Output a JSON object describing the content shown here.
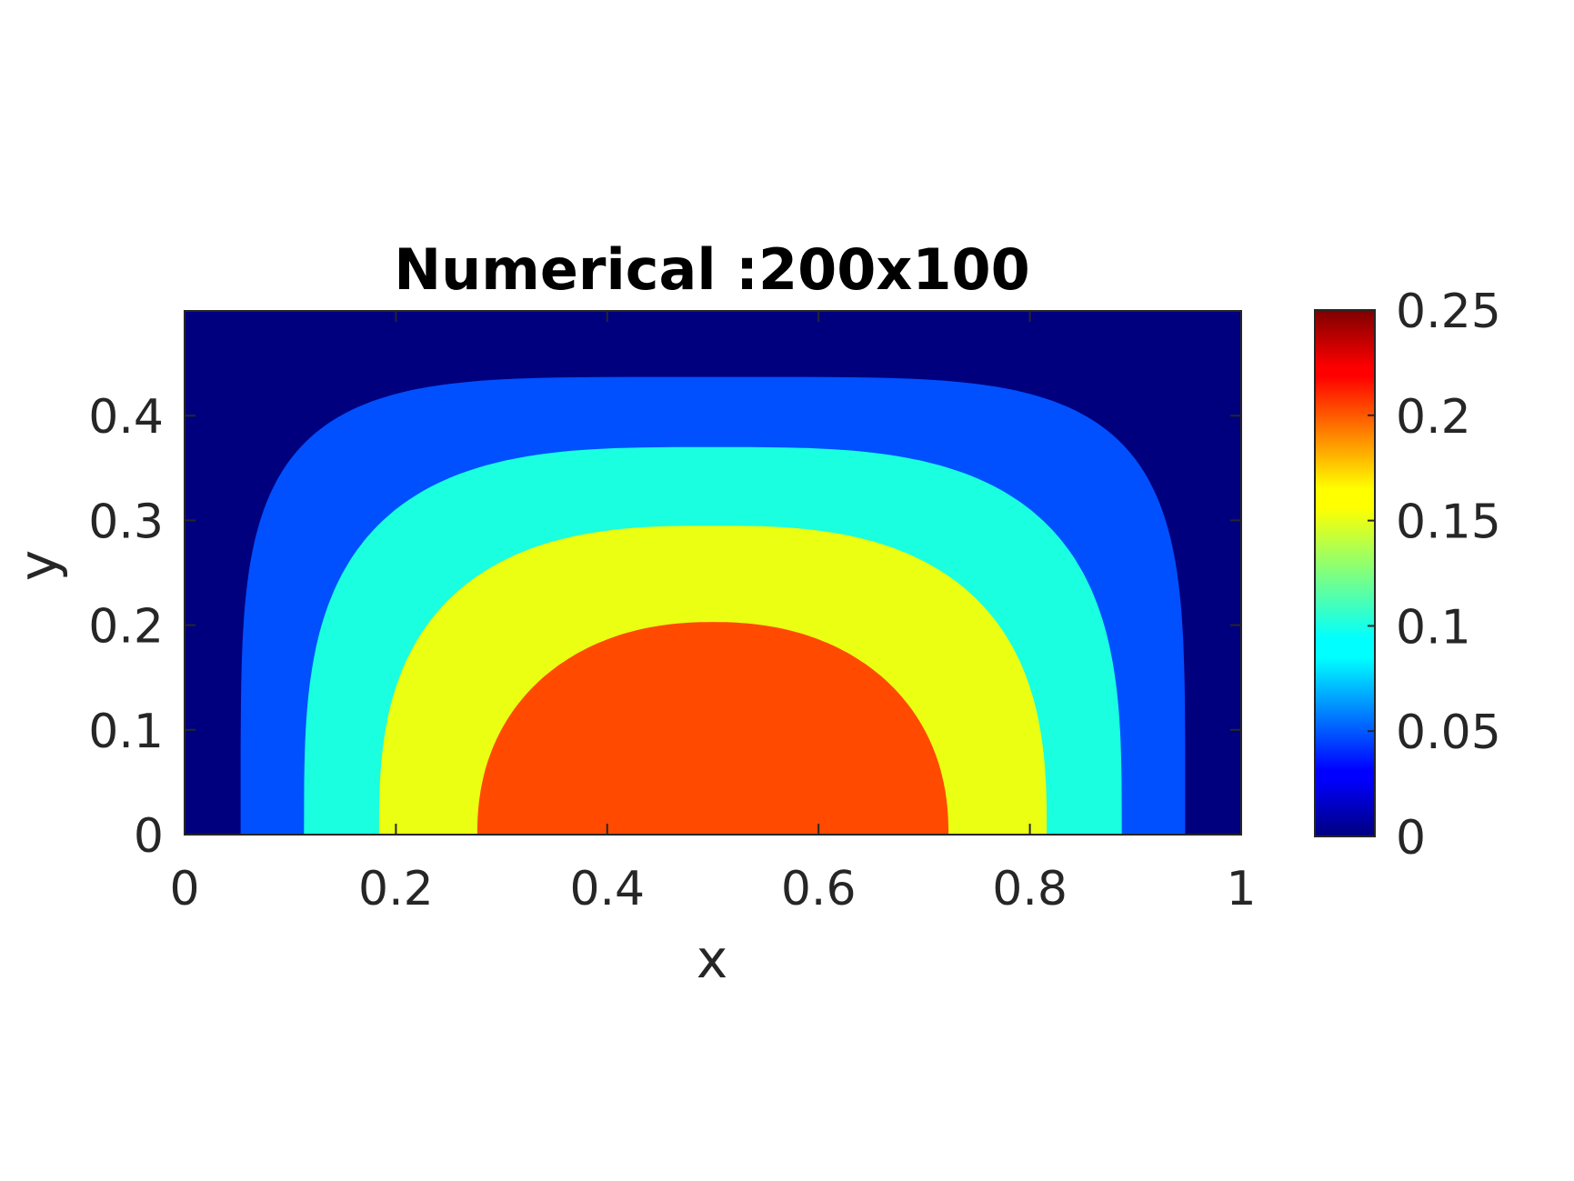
{
  "chart_data": {
    "type": "contourf",
    "title": "Numerical :200x100",
    "xlabel": "x",
    "ylabel": "y",
    "xlim": [
      0,
      1
    ],
    "ylim": [
      0,
      0.5
    ],
    "xticks": [
      0,
      0.2,
      0.4,
      0.6,
      0.8,
      1
    ],
    "xtick_labels": [
      "0",
      "0.2",
      "0.4",
      "0.6",
      "0.8",
      "1"
    ],
    "yticks": [
      0,
      0.1,
      0.2,
      0.3,
      0.4
    ],
    "ytick_labels": [
      "0",
      "0.1",
      "0.2",
      "0.3",
      "0.4"
    ],
    "colormap": "jet",
    "clim": [
      0,
      0.25
    ],
    "colorbar_ticks": [
      0,
      0.05,
      0.1,
      0.15,
      0.2,
      0.25
    ],
    "colorbar_tick_labels": [
      "0",
      "0.05",
      "0.1",
      "0.15",
      "0.2",
      "0.25"
    ],
    "contour_levels": [
      {
        "level": 0.05,
        "color": "#0050ff",
        "x_at_y0": [
          0.053,
          0.947
        ],
        "y_max": 0.437
      },
      {
        "level": 0.1,
        "color": "#19ffdf",
        "x_at_y0": [
          0.113,
          0.887
        ],
        "y_max": 0.37
      },
      {
        "level": 0.15,
        "color": "#eaff12",
        "x_at_y0": [
          0.184,
          0.816
        ],
        "y_max": 0.295
      },
      {
        "level": 0.2,
        "color": "#ff4a00",
        "x_at_y0": [
          0.277,
          0.723
        ],
        "y_max": 0.203
      }
    ],
    "background_color": "#00007f",
    "grid": false
  }
}
